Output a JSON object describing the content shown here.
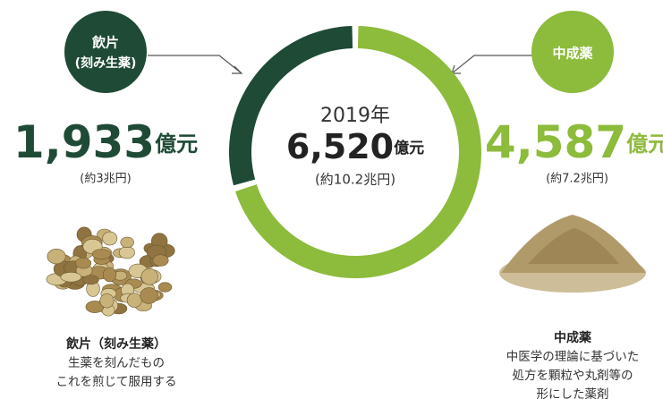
{
  "chart_data": {
    "type": "donut",
    "year": "2019年",
    "total": "6,520",
    "unit": "億元",
    "total_jpy": "(約10.2兆円)",
    "segments": [
      {
        "name": "飲片",
        "subname": "(刻み生薬)",
        "value": 1933,
        "value_label": "1,933",
        "color": "#1f4a36",
        "jpy": "(約3兆円)",
        "caption": {
          "title": "飲片（刻み生薬）",
          "lines": [
            "生薬を刻んだもの",
            "これを煎じて服用する"
          ]
        }
      },
      {
        "name": "中成薬",
        "value": 4587,
        "value_label": "4,587",
        "color": "#8dbb3b",
        "jpy": "(約7.2兆円)",
        "caption": {
          "title": "中成薬",
          "lines": [
            "中医学の理論に基づいた",
            "処方を顆粒や丸剤等の",
            "形にした薬剤"
          ]
        }
      }
    ]
  }
}
